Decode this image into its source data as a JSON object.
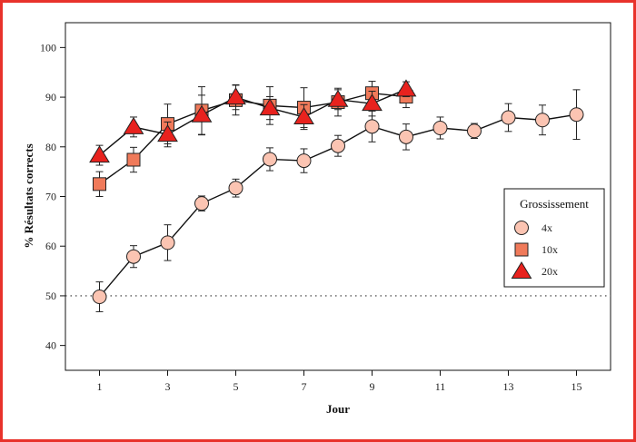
{
  "colors": {
    "frame": "#e8322b",
    "s4x": "#fbc4b2",
    "s10x": "#f07a5a",
    "s20x": "#e8221e",
    "line": "#111111"
  },
  "chart_data": {
    "type": "line",
    "title": "",
    "xlabel": "Jour",
    "ylabel": "% Résultats corrects",
    "xlim": [
      0,
      16
    ],
    "ylim": [
      35,
      105
    ],
    "xticks": [
      1,
      3,
      5,
      7,
      9,
      11,
      13,
      15
    ],
    "yticks": [
      40,
      50,
      60,
      70,
      80,
      90,
      100
    ],
    "reference_line": {
      "y": 50,
      "style": "dotted"
    },
    "legend": {
      "title": "Grossissement",
      "position": "right"
    },
    "series": [
      {
        "name": "4x",
        "marker": "circle",
        "x": [
          1,
          2,
          3,
          4,
          5,
          6,
          7,
          8,
          9,
          10,
          11,
          12,
          13,
          14,
          15
        ],
        "y": [
          49.8,
          57.9,
          60.7,
          68.6,
          71.7,
          77.5,
          77.2,
          80.2,
          84.1,
          82.0,
          83.8,
          83.2,
          85.9,
          85.4,
          86.5
        ],
        "err": [
          3.0,
          2.2,
          3.6,
          1.5,
          1.8,
          2.3,
          2.4,
          2.1,
          3.1,
          2.6,
          2.2,
          1.5,
          2.8,
          3.0,
          5.0
        ]
      },
      {
        "name": "10x",
        "marker": "square",
        "x": [
          1,
          2,
          3,
          4,
          5,
          6,
          7,
          8,
          9,
          10
        ],
        "y": [
          72.5,
          77.4,
          84.6,
          87.3,
          89.4,
          88.3,
          87.9,
          89.0,
          90.8,
          90.1
        ],
        "err": [
          2.5,
          2.5,
          4.0,
          4.8,
          3.0,
          3.8,
          4.0,
          2.8,
          2.4,
          2.2
        ]
      },
      {
        "name": "20x",
        "marker": "triangle",
        "x": [
          1,
          2,
          3,
          4,
          5,
          6,
          7,
          8,
          9,
          10
        ],
        "y": [
          78.3,
          84.0,
          82.5,
          86.4,
          90.0,
          87.8,
          86.0,
          89.5,
          88.7,
          91.6
        ],
        "err": [
          2.0,
          2.0,
          2.5,
          4.0,
          2.5,
          2.3,
          2.5,
          2.0,
          2.5,
          1.5
        ]
      }
    ]
  }
}
